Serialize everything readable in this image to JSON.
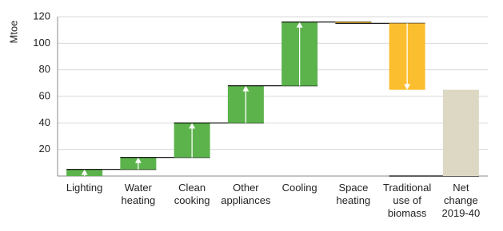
{
  "chart_data": {
    "type": "waterfall",
    "y_label": "Mtoe",
    "categories": [
      [
        "Lighting"
      ],
      [
        "Water",
        "heating"
      ],
      [
        "Clean",
        "cooking"
      ],
      [
        "Other",
        "appliances"
      ],
      [
        "Cooling"
      ],
      [
        "Space",
        "heating"
      ],
      [
        "Traditional",
        "use of",
        "biomass"
      ],
      [
        "Net",
        "change",
        "2019-40"
      ]
    ],
    "values": [
      5,
      9,
      26,
      28,
      48,
      -1,
      -50,
      65
    ],
    "increase_color": "#5cb34c",
    "decrease_color": "#fbbe2e",
    "total_color": "#ddd8c3",
    "last_is_total": true,
    "ylim": [
      0,
      120
    ],
    "yticks": [
      20,
      40,
      60,
      80,
      100,
      120
    ],
    "grid": true
  }
}
